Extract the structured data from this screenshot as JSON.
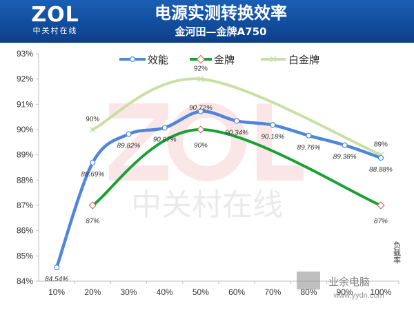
{
  "header": {
    "logo_main": "ZOL",
    "logo_sub": "中关村在线",
    "title": "电源实测转换效率",
    "subtitle": "金河田—金牌A750"
  },
  "watermark": {
    "center_text": "中关村在线",
    "site_url": "www.yydn.com",
    "site_name": "业余电脑"
  },
  "colors": {
    "header": "#1a5fb4",
    "efficiency": "#4f86d9",
    "gold": "#1aa034",
    "platinum": "#c9dfa6",
    "marker_red": "#d9534f"
  },
  "chart_data": {
    "type": "line",
    "x": [
      "10%",
      "20%",
      "30%",
      "40%",
      "50%",
      "60%",
      "70%",
      "80%",
      "90%",
      "100%"
    ],
    "xlabel": "负载率",
    "ylim": [
      84,
      93
    ],
    "yticks": [
      "84%",
      "85%",
      "86%",
      "87%",
      "88%",
      "89%",
      "90%",
      "91%",
      "92%",
      "93%"
    ],
    "legend_position": "top",
    "series": [
      {
        "name": "效能",
        "color": "#4f86d9",
        "values": [
          84.54,
          88.69,
          89.82,
          90.07,
          90.72,
          90.34,
          90.18,
          89.76,
          89.38,
          88.88
        ],
        "labels": [
          "84.54%",
          "88.69%",
          "89.82%",
          "90.07%",
          "90.72%",
          "90.34%",
          "90.18%",
          "89.76%",
          "89.38%",
          "88.88%"
        ]
      },
      {
        "name": "金牌",
        "color": "#1aa034",
        "values": [
          null,
          87,
          null,
          null,
          90,
          null,
          null,
          null,
          null,
          87
        ],
        "labels": [
          null,
          "87%",
          null,
          null,
          "90%",
          null,
          null,
          null,
          null,
          "87%"
        ]
      },
      {
        "name": "白金牌",
        "color": "#c9dfa6",
        "values": [
          null,
          90,
          null,
          null,
          92,
          null,
          null,
          null,
          null,
          89
        ],
        "labels": [
          null,
          "90%",
          null,
          null,
          "92%",
          null,
          null,
          null,
          null,
          "89%"
        ]
      }
    ]
  }
}
